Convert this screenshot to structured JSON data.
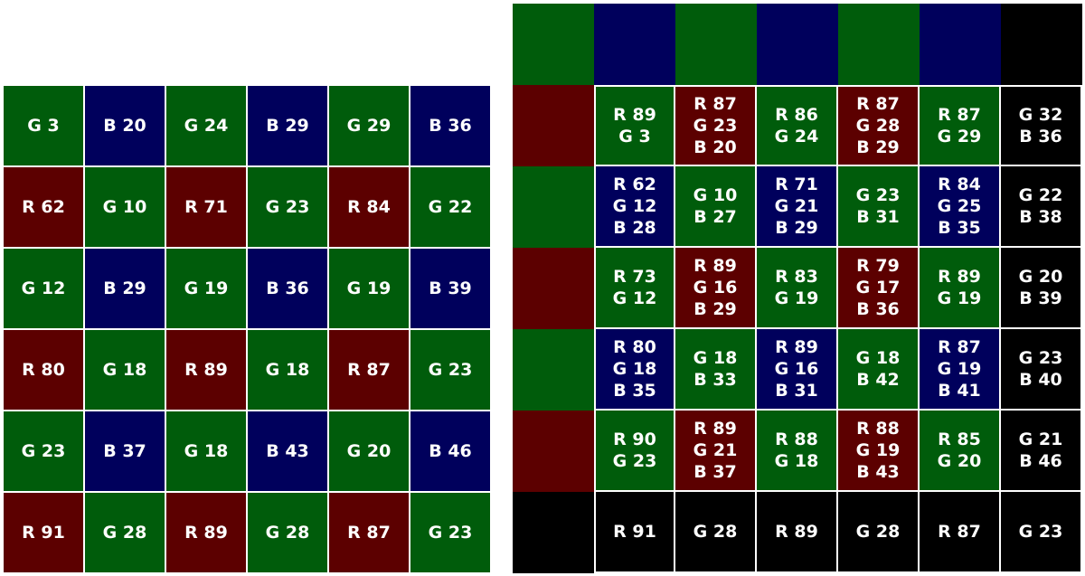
{
  "colors": {
    "R": "#5c0000",
    "G": "#005c0b",
    "B": "#00005c",
    "K": "#000000"
  },
  "mosaic": [
    [
      {
        "c": "G",
        "t": "G 3"
      },
      {
        "c": "B",
        "t": "B 20"
      },
      {
        "c": "G",
        "t": "G 24"
      },
      {
        "c": "B",
        "t": "B 29"
      },
      {
        "c": "G",
        "t": "G 29"
      },
      {
        "c": "B",
        "t": "B 36"
      }
    ],
    [
      {
        "c": "R",
        "t": "R 62"
      },
      {
        "c": "G",
        "t": "G 10"
      },
      {
        "c": "R",
        "t": "R 71"
      },
      {
        "c": "G",
        "t": "G 23"
      },
      {
        "c": "R",
        "t": "R 84"
      },
      {
        "c": "G",
        "t": "G 22"
      }
    ],
    [
      {
        "c": "G",
        "t": "G 12"
      },
      {
        "c": "B",
        "t": "B 29"
      },
      {
        "c": "G",
        "t": "G 19"
      },
      {
        "c": "B",
        "t": "B 36"
      },
      {
        "c": "G",
        "t": "G 19"
      },
      {
        "c": "B",
        "t": "B 39"
      }
    ],
    [
      {
        "c": "R",
        "t": "R 80"
      },
      {
        "c": "G",
        "t": "G 18"
      },
      {
        "c": "R",
        "t": "R 89"
      },
      {
        "c": "G",
        "t": "G 18"
      },
      {
        "c": "R",
        "t": "R 87"
      },
      {
        "c": "G",
        "t": "G 23"
      }
    ],
    [
      {
        "c": "G",
        "t": "G 23"
      },
      {
        "c": "B",
        "t": "B 37"
      },
      {
        "c": "G",
        "t": "G 18"
      },
      {
        "c": "B",
        "t": "B 43"
      },
      {
        "c": "G",
        "t": "G 20"
      },
      {
        "c": "B",
        "t": "B 46"
      }
    ],
    [
      {
        "c": "R",
        "t": "R 91"
      },
      {
        "c": "G",
        "t": "G 28"
      },
      {
        "c": "R",
        "t": "R 89"
      },
      {
        "c": "G",
        "t": "G 28"
      },
      {
        "c": "R",
        "t": "R 87"
      },
      {
        "c": "G",
        "t": "G 23"
      }
    ]
  ],
  "interpolated": [
    [
      {
        "c": "G",
        "t": ""
      },
      {
        "c": "B",
        "t": ""
      },
      {
        "c": "G",
        "t": ""
      },
      {
        "c": "B",
        "t": ""
      },
      {
        "c": "G",
        "t": ""
      },
      {
        "c": "B",
        "t": ""
      },
      {
        "c": "K",
        "t": ""
      }
    ],
    [
      {
        "c": "R",
        "t": ""
      },
      {
        "c": "G",
        "t": "R 89\nG 3"
      },
      {
        "c": "R",
        "t": "R 87\nG 23\nB 20"
      },
      {
        "c": "G",
        "t": "R 86\nG 24"
      },
      {
        "c": "R",
        "t": "R 87\nG 28\nB 29"
      },
      {
        "c": "G",
        "t": "R 87\nG 29"
      },
      {
        "c": "K",
        "t": "G 32\nB 36"
      }
    ],
    [
      {
        "c": "G",
        "t": ""
      },
      {
        "c": "B",
        "t": "R 62\nG 12\nB 28"
      },
      {
        "c": "G",
        "t": "G 10\nB 27"
      },
      {
        "c": "B",
        "t": "R 71\nG 21\nB 29"
      },
      {
        "c": "G",
        "t": "G 23\nB 31"
      },
      {
        "c": "B",
        "t": "R 84\nG 25\nB 35"
      },
      {
        "c": "K",
        "t": "G 22\nB 38"
      }
    ],
    [
      {
        "c": "R",
        "t": ""
      },
      {
        "c": "G",
        "t": "R 73\nG 12"
      },
      {
        "c": "R",
        "t": "R 89\nG 16\nB 29"
      },
      {
        "c": "G",
        "t": "R 83\nG 19"
      },
      {
        "c": "R",
        "t": "R 79\nG 17\nB 36"
      },
      {
        "c": "G",
        "t": "R 89\nG 19"
      },
      {
        "c": "K",
        "t": "G 20\nB 39"
      }
    ],
    [
      {
        "c": "G",
        "t": ""
      },
      {
        "c": "B",
        "t": "R 80\nG 18\nB 35"
      },
      {
        "c": "G",
        "t": "G 18\nB 33"
      },
      {
        "c": "B",
        "t": "R 89\nG 16\nB 31"
      },
      {
        "c": "G",
        "t": "G 18\nB 42"
      },
      {
        "c": "B",
        "t": "R 87\nG 19\nB 41"
      },
      {
        "c": "K",
        "t": "G 23\nB 40"
      }
    ],
    [
      {
        "c": "R",
        "t": ""
      },
      {
        "c": "G",
        "t": "R 90\nG 23"
      },
      {
        "c": "R",
        "t": "R 89\nG 21\nB 37"
      },
      {
        "c": "G",
        "t": "R 88\nG 18"
      },
      {
        "c": "R",
        "t": "R 88\nG 19\nB 43"
      },
      {
        "c": "G",
        "t": "R 85\nG 20"
      },
      {
        "c": "K",
        "t": "G 21\nB 46"
      }
    ],
    [
      {
        "c": "K",
        "t": ""
      },
      {
        "c": "K",
        "t": "R 91"
      },
      {
        "c": "K",
        "t": "G 28"
      },
      {
        "c": "K",
        "t": "R 89"
      },
      {
        "c": "K",
        "t": "G 28"
      },
      {
        "c": "K",
        "t": "R 87"
      },
      {
        "c": "K",
        "t": "G 23"
      }
    ]
  ]
}
